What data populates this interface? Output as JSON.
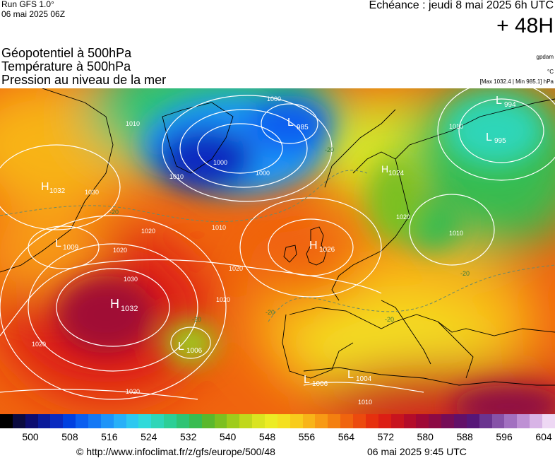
{
  "header": {
    "run": "Run GFS 1.0°",
    "date": "06 mai 2025 06Z",
    "echeance": "Echéance : jeudi 8 mai 2025 6h UTC",
    "lead": "+ 48H"
  },
  "titles": {
    "line1": "Géopotentiel à 500hPa",
    "line2": "Température à 500hPa",
    "line3": "Pression au niveau de la mer"
  },
  "units": {
    "geo": "gpdam",
    "temp": "°C",
    "pressure": "[Max 1032.4 | Min 985.1] hPa"
  },
  "map": {
    "isobar_labels": [
      {
        "text": "1010"
      },
      {
        "text": "1030"
      },
      {
        "text": "1020"
      },
      {
        "text": "1020"
      },
      {
        "text": "1030"
      },
      {
        "text": "1020"
      },
      {
        "text": "1020"
      },
      {
        "text": "1020"
      },
      {
        "text": "1000"
      },
      {
        "text": "1000"
      },
      {
        "text": "1010"
      },
      {
        "text": "1000"
      },
      {
        "text": "1010"
      },
      {
        "text": "1020"
      },
      {
        "text": "1010"
      },
      {
        "text": "1010"
      },
      {
        "text": "1020"
      },
      {
        "text": "1010"
      }
    ],
    "temp_labels": [
      {
        "text": "-20"
      },
      {
        "text": "-20"
      },
      {
        "text": "-20"
      },
      {
        "text": "-20"
      },
      {
        "text": "-20"
      },
      {
        "text": "-20"
      }
    ],
    "centers": [
      {
        "type": "H",
        "value": "1032"
      },
      {
        "type": "L",
        "value": "1009"
      },
      {
        "type": "H",
        "value": "1032"
      },
      {
        "type": "L",
        "value": "1006"
      },
      {
        "type": "L",
        "value": "985"
      },
      {
        "type": "H",
        "value": "1024"
      },
      {
        "type": "L",
        "value": "994"
      },
      {
        "type": "L",
        "value": "995"
      },
      {
        "type": "H",
        "value": "1026"
      },
      {
        "type": "L",
        "value": "1006"
      },
      {
        "type": "L",
        "value": "1004"
      }
    ]
  },
  "legend": {
    "colors": [
      "#000000",
      "#0a0a40",
      "#0c0c70",
      "#0a1a9a",
      "#0a2ac0",
      "#0040e0",
      "#0a5ef0",
      "#1478f5",
      "#1e94f8",
      "#28b0f8",
      "#2ec8f0",
      "#30dada",
      "#2ed6b8",
      "#2ccf96",
      "#2ec474",
      "#38bc50",
      "#5ab82c",
      "#7cc020",
      "#9ecc1c",
      "#c0d81c",
      "#dae420",
      "#ecec24",
      "#f4e020",
      "#f8cc1c",
      "#f8b418",
      "#f89a14",
      "#f48010",
      "#f0640e",
      "#ec4a0e",
      "#e6300e",
      "#dc1e14",
      "#c8141e",
      "#b40c2a",
      "#a00836",
      "#8c0a44",
      "#760c56",
      "#621068",
      "#561678",
      "#6a3490",
      "#8652a8",
      "#a270c0",
      "#be90d4",
      "#d8b4e6",
      "#eed8f4"
    ],
    "ticks": [
      "500",
      "508",
      "516",
      "524",
      "532",
      "540",
      "548",
      "556",
      "564",
      "572",
      "580",
      "588",
      "596",
      "604"
    ]
  },
  "footer": {
    "url": "© http://www.infoclimat.fr/z/gfs/europe/500/48",
    "timestamp": "06 mai 2025  9:45 UTC"
  }
}
